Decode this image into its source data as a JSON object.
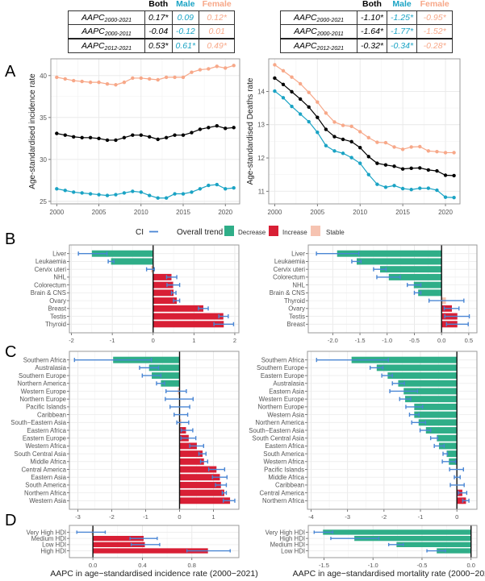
{
  "colors": {
    "both": "#000000",
    "male": "#1aa3c4",
    "female": "#f7a889",
    "decrease": "#2fae88",
    "increase": "#d81f35",
    "stable": "#f6c3b1",
    "ci": "#4a86d4"
  },
  "panel_labels": [
    "A",
    "B",
    "C",
    "D"
  ],
  "tables": [
    {
      "headers": [
        "Both",
        "Male",
        "Female"
      ],
      "rows": [
        {
          "label": "AAPC",
          "sub": "2000-2021",
          "both": "0.17*",
          "male": "0.09",
          "female": "0.12*"
        },
        {
          "label": "AAPC",
          "sub": "2000-2011",
          "both": "-0.04",
          "male": "-0.12",
          "female": "0.01"
        },
        {
          "label": "AAPC",
          "sub": "2012-2021",
          "both": "0.53*",
          "male": "0.61*",
          "female": "0.49*"
        }
      ]
    },
    {
      "headers": [
        "Both",
        "Male",
        "Female"
      ],
      "rows": [
        {
          "label": "AAPC",
          "sub": "2000-2021",
          "both": "-1.10*",
          "male": "-1.25*",
          "female": "-0.95*"
        },
        {
          "label": "AAPC",
          "sub": "2000-2011",
          "both": "-1.64*",
          "male": "-1.77*",
          "female": "-1.52*"
        },
        {
          "label": "AAPC",
          "sub": "2012-2021",
          "both": "-0.32*",
          "male": "-0.34*",
          "female": "-0.28*"
        }
      ]
    }
  ],
  "legend": {
    "ci_label": "CI",
    "trend_label": "Overall trend",
    "items": [
      "Decrease",
      "Increase",
      "Stable"
    ]
  },
  "xlabels": {
    "left": "AAPC in age−standardised incidence rate (2000−2021)",
    "right": "AAPC in age−standardised mortality rate (2000−2021)"
  },
  "chart_data": [
    {
      "id": "A-incidence",
      "type": "line",
      "ylabel": "Age-standardised incidence rate",
      "x": [
        2000,
        2001,
        2002,
        2003,
        2004,
        2005,
        2006,
        2007,
        2008,
        2009,
        2010,
        2011,
        2012,
        2013,
        2014,
        2015,
        2016,
        2017,
        2018,
        2019,
        2020,
        2021
      ],
      "xticks": [
        2000,
        2005,
        2010,
        2015,
        2020
      ],
      "yticks": [
        25,
        30,
        35,
        40
      ],
      "xlim": [
        1999.3,
        2021.7
      ],
      "ylim": [
        24.7,
        42.0
      ],
      "series": [
        {
          "name": "Female",
          "color": "female",
          "values": [
            39.8,
            39.6,
            39.4,
            39.3,
            39.2,
            39.2,
            39.0,
            38.9,
            39.2,
            39.7,
            39.7,
            39.6,
            39.5,
            39.8,
            39.8,
            39.8,
            40.4,
            40.7,
            40.8,
            41.1,
            40.9,
            41.2
          ]
        },
        {
          "name": "Both",
          "color": "both",
          "values": [
            33.1,
            32.9,
            32.7,
            32.6,
            32.6,
            32.5,
            32.3,
            32.3,
            32.6,
            32.9,
            32.9,
            32.7,
            32.4,
            32.6,
            32.9,
            32.9,
            33.2,
            33.6,
            33.8,
            34.0,
            33.7,
            33.8
          ]
        },
        {
          "name": "Male",
          "color": "male",
          "values": [
            26.5,
            26.3,
            26.1,
            26.0,
            25.9,
            25.8,
            25.7,
            25.8,
            26.0,
            26.2,
            26.1,
            25.7,
            25.4,
            25.4,
            25.9,
            25.9,
            26.1,
            26.5,
            26.9,
            27.0,
            26.5,
            26.6
          ]
        }
      ]
    },
    {
      "id": "A-deaths",
      "type": "line",
      "ylabel": "Age-standardised Deaths rate",
      "x": [
        2000,
        2001,
        2002,
        2003,
        2004,
        2005,
        2006,
        2007,
        2008,
        2009,
        2010,
        2011,
        2012,
        2013,
        2014,
        2015,
        2016,
        2017,
        2018,
        2019,
        2020,
        2021
      ],
      "xticks": [
        2000,
        2005,
        2010,
        2015,
        2020
      ],
      "yticks": [
        11,
        12,
        13,
        14
      ],
      "xlim": [
        1999.3,
        2021.7
      ],
      "ylim": [
        10.62,
        14.98
      ],
      "series": [
        {
          "name": "Female",
          "color": "female",
          "values": [
            14.8,
            14.62,
            14.43,
            14.23,
            13.97,
            13.68,
            13.35,
            13.08,
            12.98,
            12.95,
            12.79,
            12.61,
            12.47,
            12.46,
            12.33,
            12.26,
            12.33,
            12.34,
            12.21,
            12.19,
            12.16,
            12.16
          ]
        },
        {
          "name": "Both",
          "color": "both",
          "values": [
            14.4,
            14.21,
            13.99,
            13.77,
            13.53,
            13.22,
            12.86,
            12.64,
            12.56,
            12.49,
            12.31,
            12.04,
            11.84,
            11.79,
            11.75,
            11.67,
            11.69,
            11.7,
            11.64,
            11.61,
            11.48,
            11.47
          ]
        },
        {
          "name": "Male",
          "color": "male",
          "values": [
            14.01,
            13.81,
            13.55,
            13.32,
            13.09,
            12.77,
            12.37,
            12.21,
            12.14,
            12.01,
            11.84,
            11.5,
            11.21,
            11.12,
            11.17,
            11.08,
            11.05,
            11.09,
            11.09,
            11.03,
            10.82,
            10.81
          ]
        }
      ]
    },
    {
      "id": "B-incidence",
      "type": "bar",
      "orientation": "horizontal",
      "xlim": [
        -2.05,
        2.1
      ],
      "xticks": [
        -2,
        -1,
        0,
        1,
        2
      ],
      "xtick_labels": [
        "-2",
        "-1",
        "0",
        "1",
        "2"
      ],
      "categories": [
        "Liver",
        "Leukaemia",
        "Cervix uteri",
        "NHL",
        "Colorectum",
        "Brain & CNS",
        "Ovary",
        "Breast",
        "Testis",
        "Thyroid"
      ],
      "values": [
        -1.5,
        -1.03,
        -0.05,
        0.45,
        0.49,
        0.5,
        0.58,
        1.23,
        1.72,
        1.73
      ],
      "ci_low": [
        -1.83,
        -1.1,
        -0.16,
        0.33,
        0.34,
        0.45,
        0.5,
        1.11,
        1.61,
        1.49
      ],
      "ci_high": [
        -1.13,
        -0.96,
        0.03,
        0.58,
        0.65,
        0.56,
        0.65,
        1.35,
        1.84,
        1.97
      ],
      "trend": [
        "Decrease",
        "Decrease",
        "Stable",
        "Increase",
        "Increase",
        "Increase",
        "Increase",
        "Increase",
        "Increase",
        "Increase"
      ]
    },
    {
      "id": "B-mortality",
      "type": "bar",
      "orientation": "horizontal",
      "xlim": [
        -2.45,
        0.65
      ],
      "xticks": [
        -2,
        -1.5,
        -1,
        -0.5,
        0,
        0.5
      ],
      "xtick_labels": [
        "-2.0",
        "-1.5",
        "-1.0",
        "-0.5",
        "0.0",
        "0.5"
      ],
      "categories": [
        "Liver",
        "Leukaemia",
        "Cervix uteri",
        "Colorectum",
        "NHL",
        "Brain & CNS",
        "Thyroid",
        "Ovary",
        "Testis",
        "Breast"
      ],
      "values": [
        -1.92,
        -1.56,
        -1.13,
        -0.97,
        -0.51,
        -0.43,
        0.08,
        0.19,
        0.29,
        0.29
      ],
      "ci_low": [
        -2.3,
        -1.65,
        -1.25,
        -1.19,
        -0.63,
        -0.5,
        -0.23,
        0.05,
        0.06,
        0.09
      ],
      "ci_high": [
        -1.52,
        -1.48,
        -1.02,
        -0.76,
        -0.38,
        -0.38,
        0.41,
        0.32,
        0.51,
        0.49
      ],
      "trend": [
        "Decrease",
        "Decrease",
        "Decrease",
        "Decrease",
        "Decrease",
        "Decrease",
        "Stable",
        "Increase",
        "Increase",
        "Increase"
      ]
    },
    {
      "id": "C-incidence",
      "type": "bar",
      "orientation": "horizontal",
      "xlim": [
        -3.25,
        1.75
      ],
      "xticks": [
        -3,
        -2,
        -1,
        0,
        1
      ],
      "xtick_labels": [
        "-3",
        "-2",
        "-1",
        "0",
        "1"
      ],
      "categories": [
        "Southern Africa",
        "Australasia",
        "Southern Europe",
        "Northern America",
        "Western Europe",
        "Northern Europe",
        "Pacific Islands",
        "Caribbean",
        "South−Eastern Asia",
        "Eastern Africa",
        "Eastern Europe",
        "Western Africa",
        "South Central Asia",
        "Middle Africa",
        "Central America",
        "Eastern Asia",
        "South America",
        "Northern Africa",
        "Western Asia"
      ],
      "values": [
        -1.96,
        -0.9,
        -0.82,
        -0.55,
        -0.05,
        0.0,
        0.0,
        0.0,
        0.05,
        0.19,
        0.27,
        0.51,
        0.68,
        0.72,
        1.09,
        1.19,
        1.22,
        1.32,
        1.49
      ],
      "ci_low": [
        -3.1,
        -1.18,
        -1.1,
        -0.68,
        -0.4,
        -0.42,
        -0.28,
        -0.16,
        -0.08,
        0.05,
        0.04,
        0.3,
        0.57,
        0.62,
        0.86,
        0.97,
        1.06,
        1.26,
        1.29
      ],
      "ci_high": [
        -0.83,
        -0.62,
        -0.55,
        -0.44,
        0.2,
        0.4,
        0.3,
        0.24,
        0.27,
        0.39,
        0.48,
        0.71,
        0.78,
        0.83,
        1.33,
        1.4,
        1.38,
        1.38,
        1.63
      ],
      "trend": [
        "Decrease",
        "Decrease",
        "Decrease",
        "Decrease",
        "Stable",
        "Stable",
        "Stable",
        "Stable",
        "Stable",
        "Increase",
        "Increase",
        "Increase",
        "Increase",
        "Increase",
        "Increase",
        "Increase",
        "Increase",
        "Increase",
        "Increase"
      ]
    },
    {
      "id": "C-mortality",
      "type": "bar",
      "orientation": "horizontal",
      "xlim": [
        -4.1,
        0.55
      ],
      "xticks": [
        -4,
        -3,
        -2,
        -1,
        0
      ],
      "xtick_labels": [
        "-4",
        "-3",
        "-2",
        "-1",
        "0"
      ],
      "categories": [
        "Southern Africa",
        "Southern Europe",
        "Eastern Europe",
        "Australasia",
        "Eastern Asia",
        "Western Europe",
        "Northern Europe",
        "Western Asia",
        "Northern America",
        "South−Eastern Asia",
        "South Central Asia",
        "Eastern Africa",
        "South America",
        "Western Africa",
        "Pacific Islands",
        "Middle Africa",
        "Caribbean",
        "Central America",
        "Northern Africa"
      ],
      "values": [
        -2.89,
        -2.2,
        -1.9,
        -1.61,
        -1.46,
        -1.42,
        -1.17,
        -1.17,
        -1.05,
        -0.85,
        -0.55,
        -0.49,
        -0.28,
        -0.22,
        0.0,
        0.0,
        0.0,
        0.15,
        0.25
      ],
      "ci_low": [
        -3.85,
        -2.38,
        -2.06,
        -1.77,
        -1.84,
        -1.57,
        -1.4,
        -1.3,
        -1.24,
        -1.01,
        -0.72,
        -0.62,
        -0.38,
        -0.4,
        -0.2,
        -0.07,
        -0.18,
        0.04,
        0.16
      ],
      "ci_high": [
        -1.88,
        -2.03,
        -1.77,
        -1.44,
        -1.08,
        -1.27,
        -0.94,
        -1.04,
        -0.86,
        -0.72,
        -0.53,
        -0.35,
        -0.26,
        -0.03,
        0.18,
        0.09,
        0.2,
        0.27,
        0.33
      ],
      "trend": [
        "Decrease",
        "Decrease",
        "Decrease",
        "Decrease",
        "Decrease",
        "Decrease",
        "Decrease",
        "Decrease",
        "Decrease",
        "Decrease",
        "Decrease",
        "Decrease",
        "Decrease",
        "Decrease",
        "Stable",
        "Stable",
        "Stable",
        "Increase",
        "Increase"
      ]
    },
    {
      "id": "D-incidence",
      "type": "bar",
      "orientation": "horizontal",
      "xlim": [
        -0.19,
        1.18
      ],
      "xticks": [
        0,
        0.4,
        0.8
      ],
      "xtick_labels": [
        "0.0",
        "0.4",
        "0.8"
      ],
      "categories": [
        "Very High HDI",
        "Medium HDI",
        "Low HDI",
        "High HDI"
      ],
      "values": [
        -0.01,
        0.41,
        0.42,
        0.93
      ],
      "ci_low": [
        -0.13,
        0.3,
        0.31,
        0.76
      ],
      "ci_high": [
        0.1,
        0.52,
        0.54,
        1.11
      ],
      "trend": [
        "Stable",
        "Increase",
        "Increase",
        "Increase"
      ]
    },
    {
      "id": "D-mortality",
      "type": "bar",
      "orientation": "horizontal",
      "xlim": [
        -1.66,
        0.06
      ],
      "xticks": [
        -1.5,
        -1.0,
        -0.5,
        0.0
      ],
      "xtick_labels": [
        "-1.5",
        "-1.0",
        "-0.5",
        "0.0"
      ],
      "categories": [
        "Very High HDI",
        "High HDI",
        "Medium HDI",
        "Low HDI"
      ],
      "values": [
        -1.51,
        -1.19,
        -0.76,
        -0.35
      ],
      "ci_low": [
        -1.6,
        -1.43,
        -0.84,
        -0.45
      ],
      "ci_high": [
        -1.41,
        -0.94,
        -0.69,
        -0.26
      ],
      "trend": [
        "Decrease",
        "Decrease",
        "Decrease",
        "Decrease"
      ]
    }
  ]
}
